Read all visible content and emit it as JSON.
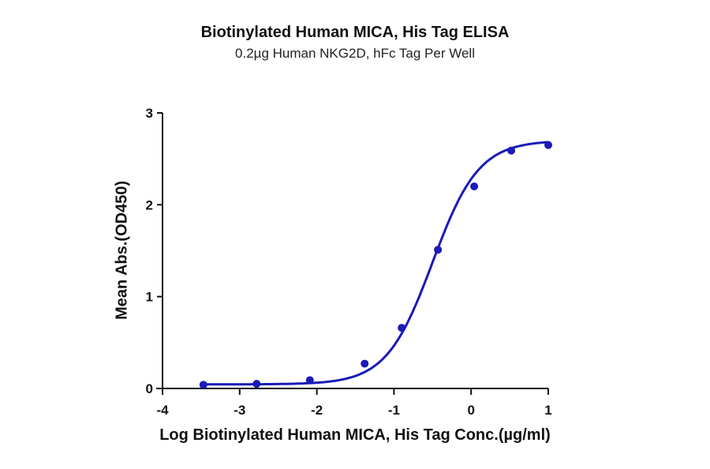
{
  "chart": {
    "title": "Biotinylated Human MICA, His Tag ELISA",
    "subtitle": "0.2µg Human NKG2D, hFc Tag Per Well",
    "xlabel": "Log Biotinylated Human MICA, His Tag Conc.(µg/ml)",
    "ylabel": "Mean Abs.(OD450)",
    "color": "#1a1ab8"
  },
  "chart_data": {
    "type": "scatter",
    "title": "Biotinylated Human MICA, His Tag ELISA",
    "subtitle": "0.2µg Human NKG2D, hFc Tag Per Well",
    "xlabel": "Log Biotinylated Human MICA, His Tag Conc.(µg/ml)",
    "ylabel": "Mean Abs.(OD450)",
    "xlim": [
      -4,
      1
    ],
    "ylim": [
      0,
      3
    ],
    "xticks": [
      -4,
      -3,
      -2,
      -1,
      0,
      1
    ],
    "yticks": [
      0,
      1,
      2,
      3
    ],
    "grid": false,
    "legend": null,
    "fit": "sigmoidal 4PL curve",
    "series": [
      {
        "name": "Biotinylated Human MICA, His Tag",
        "color": "#1a1ab8",
        "x": [
          -3.47,
          -2.78,
          -2.09,
          -1.38,
          -0.9,
          -0.43,
          0.04,
          0.52,
          1.0
        ],
        "y": [
          0.04,
          0.05,
          0.09,
          0.27,
          0.66,
          1.51,
          2.2,
          2.59,
          2.65
        ]
      }
    ]
  }
}
